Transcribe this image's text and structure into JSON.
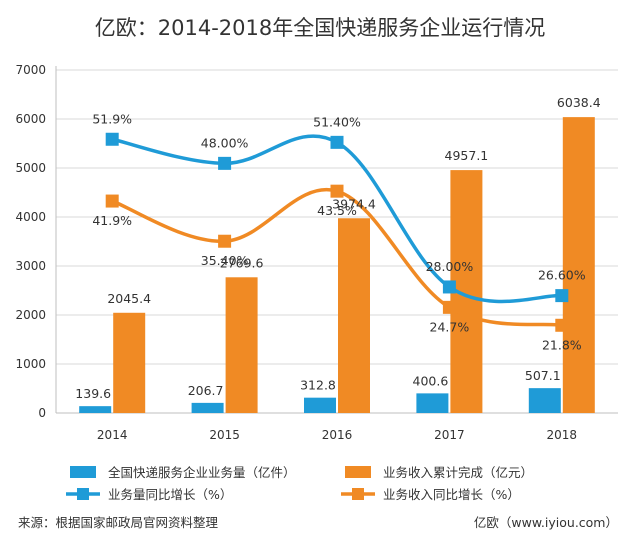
{
  "chart_data": {
    "type": "bar",
    "title": "亿欧：2014-2018年全国快递服务企业运行情况",
    "categories": [
      "2014",
      "2015",
      "2016",
      "2017",
      "2018"
    ],
    "ylim": [
      0,
      7000
    ],
    "yticks": [
      "0",
      "1000",
      "2000",
      "3000",
      "4000",
      "5000",
      "6000",
      "7000"
    ],
    "series": [
      {
        "name": "全国快递服务企业业务量（亿件）",
        "kind": "bar",
        "color": "#1F9BD7",
        "values": [
          139.6,
          206.7,
          312.8,
          400.6,
          507.1
        ],
        "labels": [
          "139.6",
          "206.7",
          "312.8",
          "400.6",
          "507.1"
        ]
      },
      {
        "name": "业务收入累计完成（亿元）",
        "kind": "bar",
        "color": "#F08A24",
        "values": [
          2045.4,
          2769.6,
          3974.4,
          4957.1,
          6038.4
        ],
        "labels": [
          "2045.4",
          "2769.6",
          "3974.4",
          "4957.1",
          "6038.4"
        ]
      },
      {
        "name": "业务量同比增长（%）",
        "kind": "line",
        "color": "#1F9BD7",
        "values": [
          51.9,
          48.0,
          51.4,
          28.0,
          26.6
        ],
        "labels": [
          "51.9%",
          "48.00%",
          "51.40%",
          "28.00%",
          "26.60%"
        ]
      },
      {
        "name": "业务收入同比增长（%）",
        "kind": "line",
        "color": "#F08A24",
        "values": [
          41.9,
          35.4,
          43.5,
          24.7,
          21.8
        ],
        "labels": [
          "41.9%",
          "35.40%",
          "43.5%",
          "24.7%",
          "21.8%"
        ]
      }
    ],
    "legend": "bottom"
  },
  "footer": {
    "source": "来源：根据国家邮政局官网资料整理",
    "brand": "亿欧（www.iyiou.com）"
  }
}
